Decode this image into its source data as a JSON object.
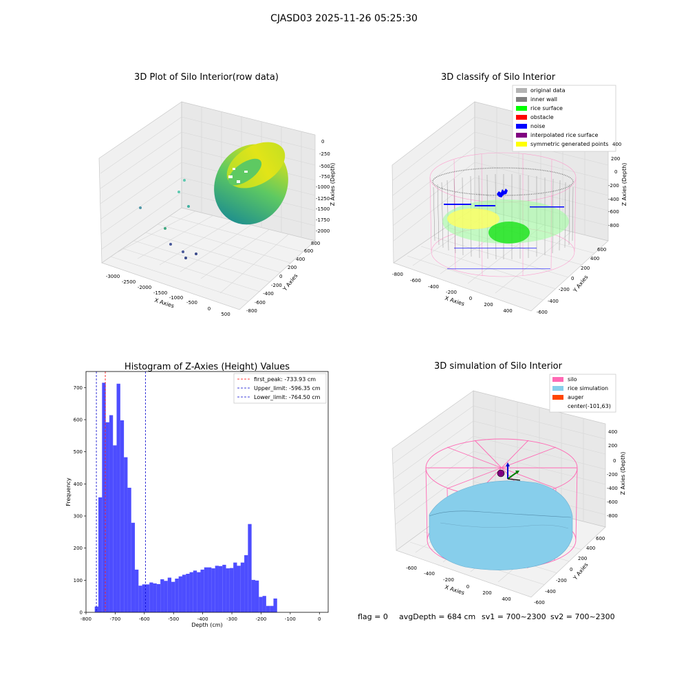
{
  "suptitle": "CJASD03 2025-11-26 05:25:30",
  "status_line": {
    "flag": "flag = 0",
    "avg_depth": "avgDepth = 684 cm",
    "sv1": "sv1 = 700~2300",
    "sv2": "sv2 = 700~2300"
  },
  "colors": {
    "hist_bar": "#4d4dff",
    "first_peak": "#ff0000",
    "limit": "#0000cc",
    "original_data": "#b3b3b3",
    "inner_wall": "#808080",
    "rice_surface": "#00ff00",
    "obstacle": "#ff0000",
    "noise": "#0000ff",
    "interpolated": "#800080",
    "symmetric": "#ffff00",
    "silo": "#ff69b4",
    "rice_simulation": "#87ceeb",
    "auger": "#ff4500"
  },
  "chart_data": [
    {
      "type": "scatter",
      "projection": "3d",
      "title": "3D Plot of Silo Interior(row data)",
      "xlabel": "X Axies",
      "ylabel": "Y Axies",
      "zlabel": "Z Axies (Depth)",
      "x_ticks": [
        "-3000",
        "-2500",
        "-2000",
        "-1500",
        "-1000",
        "-500",
        "0",
        "500"
      ],
      "y_ticks": [
        "-800",
        "-600",
        "-400",
        "-200",
        "0",
        "200",
        "400",
        "600",
        "800"
      ],
      "z_ticks": [
        "0",
        "-250",
        "-500",
        "-750",
        "-1000",
        "-1250",
        "-1500",
        "-1750",
        "-2000"
      ],
      "colormap": "viridis"
    },
    {
      "type": "scatter",
      "projection": "3d",
      "title": "3D classify of Silo Interior",
      "xlabel": "X Axies",
      "ylabel": "Y Axies",
      "zlabel": "Z Axies (Depth)",
      "x_ticks": [
        "-800",
        "-600",
        "-400",
        "-200",
        "0",
        "200",
        "400"
      ],
      "y_ticks": [
        "-600",
        "-400",
        "-200",
        "0",
        "200",
        "400",
        "600"
      ],
      "z_ticks": [
        "400",
        "200",
        "0",
        "-200",
        "-400",
        "-600",
        "-800"
      ],
      "legend_position": "top-right",
      "legend": [
        {
          "label": "original data",
          "color": "#b3b3b3"
        },
        {
          "label": "inner wall",
          "color": "#808080"
        },
        {
          "label": "rice surface",
          "color": "#00ff00"
        },
        {
          "label": "obstacle",
          "color": "#ff0000"
        },
        {
          "label": "noise",
          "color": "#0000ff"
        },
        {
          "label": "interpolated rice surface",
          "color": "#800080"
        },
        {
          "label": "symmetric generated points",
          "color": "#ffff00"
        }
      ]
    },
    {
      "type": "bar",
      "title": "Histogram of Z-Axies (Height) Values",
      "xlabel": "Depth (cm)",
      "ylabel": "Frequency",
      "xlim": [
        -800,
        30
      ],
      "ylim": [
        0,
        750
      ],
      "x_ticks": [
        -800,
        -700,
        -600,
        -500,
        -400,
        -300,
        -200,
        -100,
        0
      ],
      "y_ticks": [
        0,
        100,
        200,
        300,
        400,
        500,
        600,
        700
      ],
      "bin_start": -770,
      "bin_width": 12.5,
      "values": [
        18,
        358,
        715,
        592,
        614,
        520,
        712,
        598,
        483,
        388,
        279,
        133,
        83,
        87,
        87,
        93,
        90,
        88,
        103,
        98,
        108,
        95,
        105,
        112,
        117,
        120,
        125,
        130,
        125,
        133,
        140,
        140,
        137,
        145,
        144,
        148,
        137,
        138,
        155,
        145,
        155,
        178,
        275,
        101,
        99,
        48,
        51,
        20,
        20,
        43
      ],
      "lines": [
        {
          "label": "first_peak: -733.93 cm",
          "x": -733.93,
          "color": "#ff0000"
        },
        {
          "label": "Upper_limit: -596.35 cm",
          "x": -596.35,
          "color": "#0000cc"
        },
        {
          "label": "Lower_limit: -764.50 cm",
          "x": -764.5,
          "color": "#0000cc"
        }
      ],
      "legend_position": "top-right"
    },
    {
      "type": "surface",
      "projection": "3d",
      "title": "3D simulation of Silo Interior",
      "xlabel": "X Axies",
      "ylabel": "Y Axies",
      "zlabel": "Z Axies (Depth)",
      "x_ticks": [
        "-600",
        "-400",
        "-200",
        "0",
        "200",
        "400"
      ],
      "y_ticks": [
        "-600",
        "-400",
        "-200",
        "0",
        "200",
        "400",
        "600"
      ],
      "z_ticks": [
        "400",
        "200",
        "0",
        "-200",
        "-400",
        "-600",
        "-800"
      ],
      "legend_position": "top-right",
      "legend": [
        {
          "label": "silo",
          "color": "#ff69b4"
        },
        {
          "label": "rice simulation",
          "color": "#87ceeb"
        },
        {
          "label": "auger",
          "color": "#ff4500"
        },
        {
          "label": "center(-101,63)",
          "color": ""
        }
      ]
    }
  ]
}
